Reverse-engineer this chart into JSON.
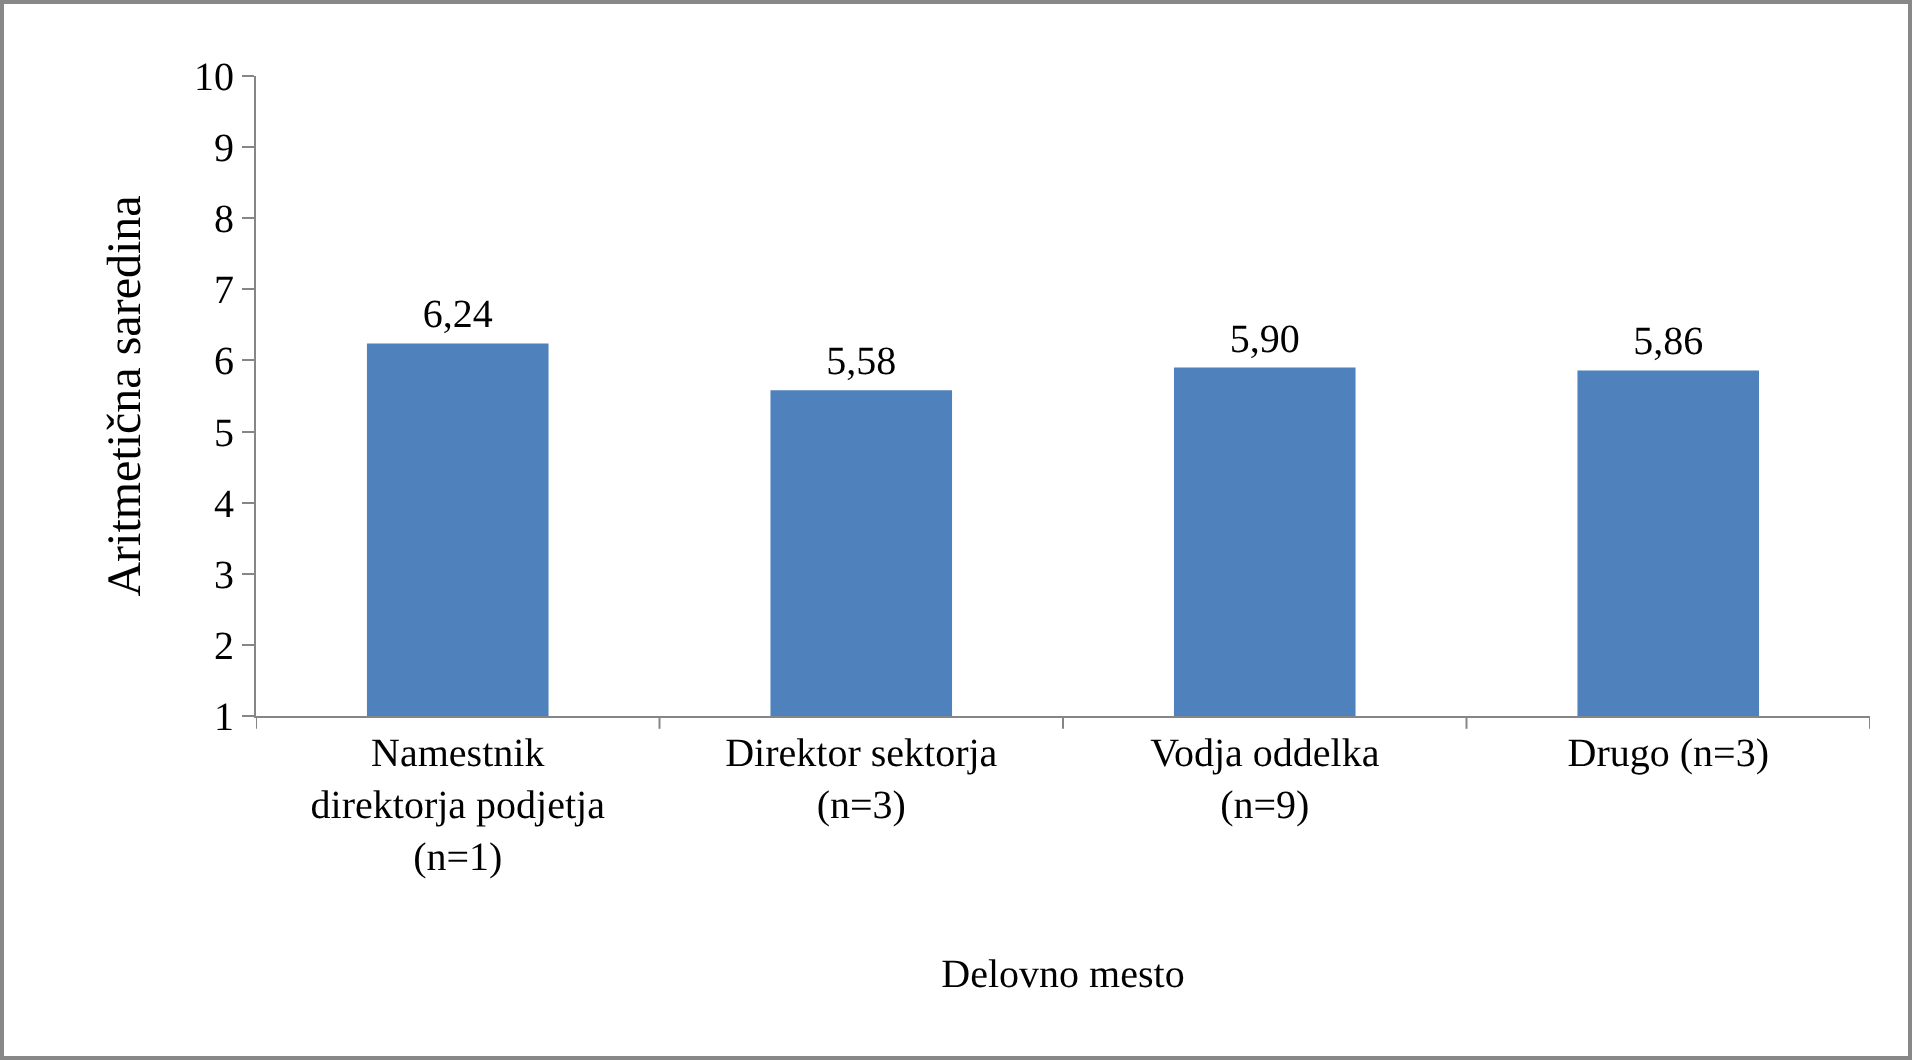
{
  "chart_data": {
    "type": "bar",
    "xlabel": "Delovno mesto",
    "ylabel": "Aritmetična saredina",
    "categories": [
      "Namestnik direktorja podjetja (n=1)",
      "Direktor sektorja (n=3)",
      "Vodja oddelka (n=9)",
      "Drugo (n=3)"
    ],
    "values": [
      6.24,
      5.58,
      5.9,
      5.86
    ],
    "value_labels": [
      "6,24",
      "5,58",
      "5,90",
      "5,86"
    ],
    "color": "#4f81bd",
    "ylim": [
      1,
      10
    ],
    "yticks": [
      1,
      2,
      3,
      4,
      5,
      6,
      7,
      8,
      9,
      10
    ],
    "grid": false
  }
}
